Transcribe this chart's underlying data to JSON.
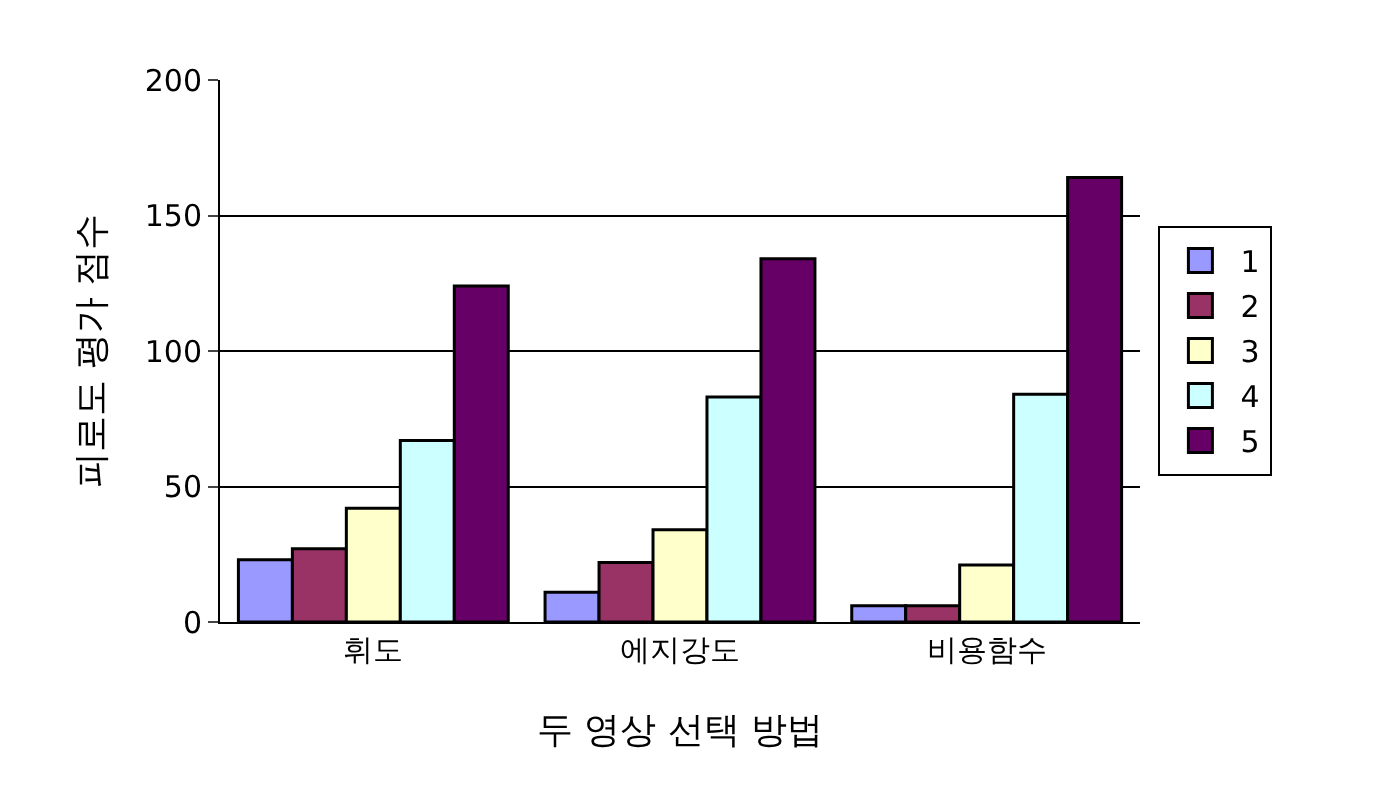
{
  "chart_data": {
    "type": "bar",
    "xlabel": "두 영상 선택 방법",
    "ylabel": "피로도 평가 점수",
    "categories": [
      "휘도",
      "에지강도",
      "비용함수"
    ],
    "series": [
      {
        "name": "1",
        "color": "#9999ff",
        "values": [
          23,
          11,
          6
        ]
      },
      {
        "name": "2",
        "color": "#993366",
        "values": [
          27,
          22,
          6
        ]
      },
      {
        "name": "3",
        "color": "#ffffcc",
        "values": [
          42,
          34,
          21
        ]
      },
      {
        "name": "4",
        "color": "#ccffff",
        "values": [
          67,
          83,
          84
        ]
      },
      {
        "name": "5",
        "color": "#660066",
        "values": [
          124,
          134,
          164
        ]
      }
    ],
    "ylim": [
      0,
      200
    ],
    "yticks": [
      0,
      50,
      100,
      150,
      200
    ],
    "grid": "y",
    "legend": "right"
  }
}
